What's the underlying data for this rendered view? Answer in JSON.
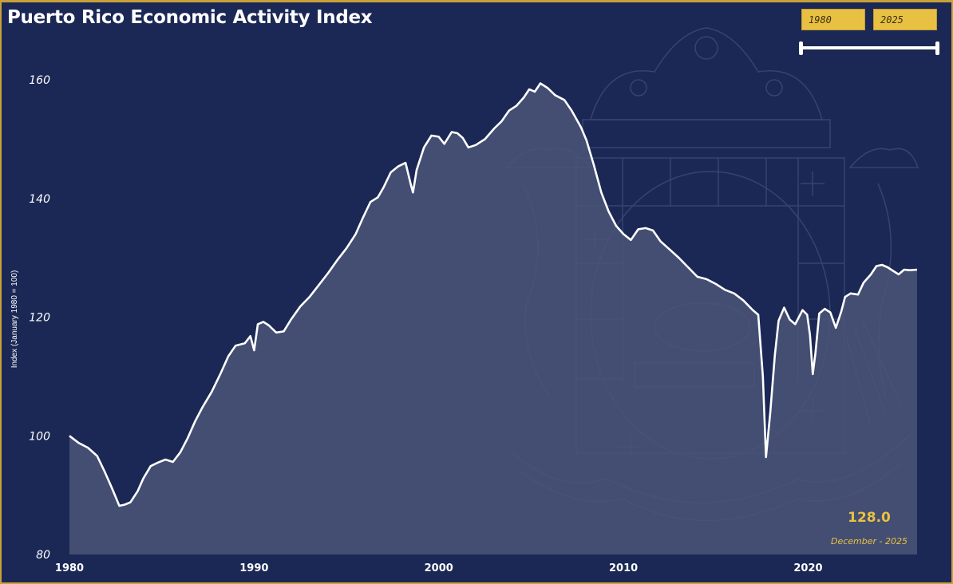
{
  "title": "Puerto Rico Economic Activity Index",
  "slicer": {
    "start": "1980",
    "end": "2025",
    "handle_color": "#ffffff",
    "box_color": "#e9c142"
  },
  "colors": {
    "background": "#1b2855",
    "line": "#ffffff",
    "area": "#4a5578",
    "accent": "#e9c142",
    "border": "#c9a13a"
  },
  "latest": {
    "value": "128.0",
    "date": "December - 2025"
  },
  "chart_data": {
    "type": "area",
    "title": "Puerto Rico Economic Activity Index",
    "xlabel": "",
    "ylabel": "Index (January 1980 = 100)",
    "xlim": [
      1980,
      2026
    ],
    "ylim": [
      80,
      165
    ],
    "x_ticks": [
      "1980",
      "1990",
      "2000",
      "2010",
      "2020"
    ],
    "y_ticks": [
      "80",
      "100",
      "120",
      "140",
      "160"
    ],
    "grid": false,
    "background_image": "puerto-rico-coat-of-arms-watermark",
    "series": [
      {
        "points": [
          [
            1980.0,
            100.0
          ],
          [
            1980.5,
            98.8
          ],
          [
            1981.0,
            98.0
          ],
          [
            1981.5,
            96.6
          ],
          [
            1981.9,
            94.0
          ],
          [
            1982.3,
            91.2
          ],
          [
            1982.7,
            88.2
          ],
          [
            1983.0,
            88.4
          ],
          [
            1983.3,
            88.8
          ],
          [
            1983.7,
            90.7
          ],
          [
            1984.0,
            92.8
          ],
          [
            1984.4,
            94.9
          ],
          [
            1984.8,
            95.5
          ],
          [
            1985.2,
            96.0
          ],
          [
            1985.6,
            95.6
          ],
          [
            1986.0,
            97.2
          ],
          [
            1986.4,
            99.6
          ],
          [
            1986.8,
            102.4
          ],
          [
            1987.2,
            104.8
          ],
          [
            1987.7,
            107.4
          ],
          [
            1988.2,
            110.6
          ],
          [
            1988.6,
            113.4
          ],
          [
            1989.0,
            115.2
          ],
          [
            1989.5,
            115.6
          ],
          [
            1989.8,
            116.8
          ],
          [
            1990.0,
            114.4
          ],
          [
            1990.2,
            118.8
          ],
          [
            1990.5,
            119.2
          ],
          [
            1990.8,
            118.6
          ],
          [
            1991.2,
            117.4
          ],
          [
            1991.6,
            117.6
          ],
          [
            1992.0,
            119.6
          ],
          [
            1992.5,
            121.8
          ],
          [
            1993.0,
            123.4
          ],
          [
            1993.5,
            125.4
          ],
          [
            1994.0,
            127.4
          ],
          [
            1994.5,
            129.6
          ],
          [
            1995.0,
            131.6
          ],
          [
            1995.5,
            134.0
          ],
          [
            1995.9,
            136.8
          ],
          [
            1996.3,
            139.4
          ],
          [
            1996.7,
            140.2
          ],
          [
            1997.0,
            141.8
          ],
          [
            1997.4,
            144.4
          ],
          [
            1997.8,
            145.4
          ],
          [
            1998.2,
            146.0
          ],
          [
            1998.5,
            142.2
          ],
          [
            1998.6,
            141.0
          ],
          [
            1998.8,
            144.8
          ],
          [
            1999.2,
            148.6
          ],
          [
            1999.6,
            150.6
          ],
          [
            2000.0,
            150.4
          ],
          [
            2000.3,
            149.2
          ],
          [
            2000.7,
            151.2
          ],
          [
            2001.0,
            151.0
          ],
          [
            2001.3,
            150.2
          ],
          [
            2001.6,
            148.6
          ],
          [
            2002.0,
            149.0
          ],
          [
            2002.5,
            150.0
          ],
          [
            2003.0,
            151.8
          ],
          [
            2003.4,
            153.0
          ],
          [
            2003.8,
            154.8
          ],
          [
            2004.2,
            155.6
          ],
          [
            2004.6,
            157.0
          ],
          [
            2004.9,
            158.4
          ],
          [
            2005.2,
            158.0
          ],
          [
            2005.5,
            159.4
          ],
          [
            2005.9,
            158.6
          ],
          [
            2006.3,
            157.4
          ],
          [
            2006.8,
            156.6
          ],
          [
            2007.2,
            154.8
          ],
          [
            2007.7,
            152.0
          ],
          [
            2008.0,
            149.8
          ],
          [
            2008.4,
            145.6
          ],
          [
            2008.8,
            141.0
          ],
          [
            2009.2,
            137.8
          ],
          [
            2009.6,
            135.4
          ],
          [
            2010.0,
            134.0
          ],
          [
            2010.4,
            133.0
          ],
          [
            2010.8,
            134.8
          ],
          [
            2011.2,
            135.0
          ],
          [
            2011.6,
            134.6
          ],
          [
            2012.0,
            132.8
          ],
          [
            2012.5,
            131.4
          ],
          [
            2013.0,
            130.0
          ],
          [
            2013.5,
            128.4
          ],
          [
            2014.0,
            126.8
          ],
          [
            2014.5,
            126.4
          ],
          [
            2015.0,
            125.6
          ],
          [
            2015.5,
            124.6
          ],
          [
            2016.0,
            124.0
          ],
          [
            2016.5,
            122.8
          ],
          [
            2017.0,
            121.2
          ],
          [
            2017.3,
            120.4
          ],
          [
            2017.55,
            110.0
          ],
          [
            2017.72,
            96.4
          ],
          [
            2017.95,
            104.0
          ],
          [
            2018.2,
            113.6
          ],
          [
            2018.4,
            119.4
          ],
          [
            2018.7,
            121.6
          ],
          [
            2019.0,
            119.6
          ],
          [
            2019.3,
            118.8
          ],
          [
            2019.7,
            121.2
          ],
          [
            2019.95,
            120.4
          ],
          [
            2020.1,
            117.0
          ],
          [
            2020.25,
            110.4
          ],
          [
            2020.4,
            114.0
          ],
          [
            2020.6,
            120.6
          ],
          [
            2020.9,
            121.4
          ],
          [
            2021.2,
            120.8
          ],
          [
            2021.5,
            118.2
          ],
          [
            2021.8,
            121.0
          ],
          [
            2022.0,
            123.4
          ],
          [
            2022.3,
            124.0
          ],
          [
            2022.7,
            123.8
          ],
          [
            2023.0,
            125.8
          ],
          [
            2023.4,
            127.2
          ],
          [
            2023.7,
            128.6
          ],
          [
            2024.0,
            128.8
          ],
          [
            2024.3,
            128.4
          ],
          [
            2024.6,
            127.8
          ],
          [
            2024.9,
            127.2
          ],
          [
            2025.2,
            128.0
          ],
          [
            2025.5,
            127.9
          ],
          [
            2025.9,
            128.0
          ]
        ]
      }
    ]
  }
}
